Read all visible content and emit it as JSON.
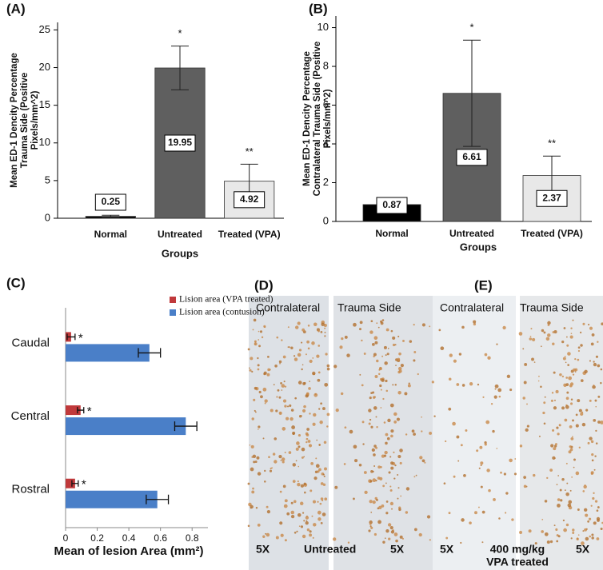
{
  "chart_data": [
    {
      "type": "bar",
      "panel_label": "(A)",
      "ylabel": [
        "Mean ED-1 Dencity Percentage",
        "Trauma Side  (Positive",
        "Pixels/mm^2)"
      ],
      "xlabel": "Groups",
      "categories": [
        "Normal",
        "Untreated",
        "Treated (VPA)"
      ],
      "values": [
        0.25,
        19.95,
        4.92
      ],
      "errors": [
        0.15,
        2.9,
        2.25
      ],
      "colors": [
        "#000000",
        "#5f5f5f",
        "#e8e8e8"
      ],
      "significance": [
        null,
        "*",
        "**"
      ],
      "ylim": [
        0,
        26
      ],
      "yticks": [
        0,
        5,
        10,
        15,
        20,
        25
      ]
    },
    {
      "type": "bar",
      "panel_label": "(B)",
      "ylabel": [
        "Mean ED-1 Dencity Percentage",
        "Contralateral Trauma Side (Positive",
        "Pixels/mm^2)"
      ],
      "xlabel": "Groups",
      "categories": [
        "Normal",
        "Untreated",
        "Treated (VPA)"
      ],
      "values": [
        0.87,
        6.61,
        2.37
      ],
      "errors": [
        0.15,
        2.74,
        1.0
      ],
      "colors": [
        "#000000",
        "#5f5f5f",
        "#e8e8e8"
      ],
      "significance": [
        null,
        "*",
        "**"
      ],
      "ylim": [
        0,
        10.6
      ],
      "yticks": [
        0,
        2,
        4,
        6,
        8,
        10
      ]
    },
    {
      "type": "barh",
      "panel_label": "(C)",
      "xlabel": "Mean of lesion Area (mm²)",
      "categories": [
        "Caudal",
        "Central",
        "Rostral"
      ],
      "series": [
        {
          "name": "Lision area (VPA treated)",
          "color": "#c0393b",
          "values": [
            0.035,
            0.095,
            0.06
          ],
          "errors": [
            0.025,
            0.02,
            0.02
          ],
          "significance": [
            "*",
            "*",
            "*"
          ]
        },
        {
          "name": "Lision area (contusion)",
          "color": "#4a7fc8",
          "values": [
            0.53,
            0.76,
            0.58
          ],
          "errors": [
            0.07,
            0.07,
            0.07
          ]
        }
      ],
      "xlim": [
        0,
        0.9
      ],
      "xticks": [
        0,
        0.2,
        0.4,
        0.6,
        0.8
      ]
    }
  ],
  "image_panels": [
    {
      "label": "(D)",
      "columns": [
        "Contralateral",
        "Trauma Side"
      ],
      "captions": [
        "5X",
        "Untreated",
        "5X"
      ]
    },
    {
      "label": "(E)",
      "columns": [
        "Contralateral",
        "Trauma Side"
      ],
      "captions": [
        "5X",
        "400 mg/kg",
        "VPA treated",
        "5X"
      ]
    }
  ]
}
